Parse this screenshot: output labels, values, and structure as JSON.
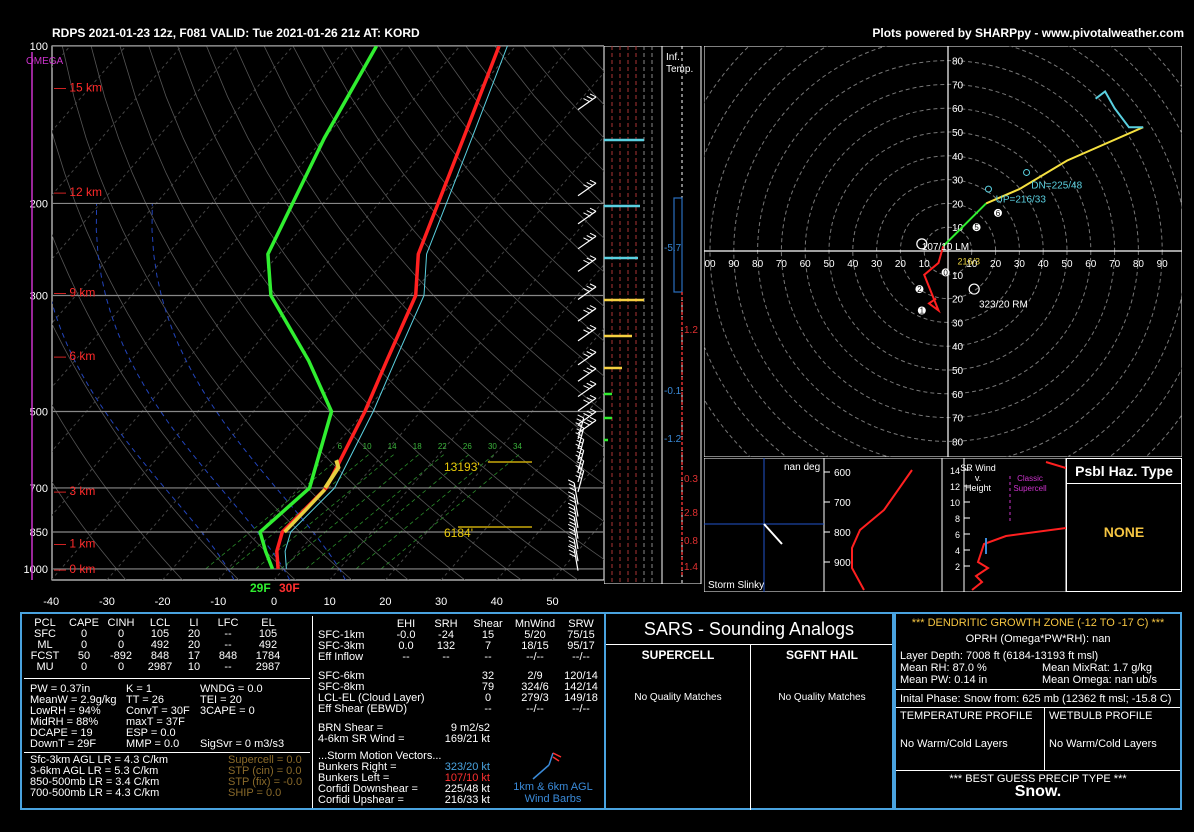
{
  "header": {
    "title_left": "RDPS 2021-01-23 12z, F081  VALID: Tue 2021-01-26 21z  AT: KORD",
    "title_right": "Plots powered by SHARPpy - www.pivotalweather.com"
  },
  "skewt": {
    "omega_label": "OMEGA",
    "pressure_ticks": [
      "100",
      "200",
      "300",
      "500",
      "700",
      "850",
      "1000"
    ],
    "temp_ticks": [
      "-40",
      "-30",
      "-20",
      "-10",
      "0",
      "10",
      "20",
      "30",
      "40",
      "50"
    ],
    "height_labels": [
      "15 km",
      "12 km",
      "9 km",
      "6 km",
      "3 km",
      "1 km",
      "0 km"
    ],
    "mixing_ratio_labels": [
      "6",
      "10",
      "14",
      "18",
      "22",
      "26",
      "30",
      "34"
    ],
    "level_13193": "13193'",
    "level_6184": "6184'",
    "sfc_dewpoint": "29F",
    "sfc_temp": "30F",
    "inf_temp_label": "Inf. Temp.",
    "inf_values": [
      "-5.7",
      "1.2",
      "-0.1",
      "-1.2",
      "0.3",
      "2.8",
      "0.8",
      "1.4"
    ]
  },
  "chart_data": {
    "type": "line",
    "title": "",
    "xlabel": "",
    "ylabel": "",
    "ylim": [
      1000,
      100
    ],
    "xlim": [
      -40,
      50
    ],
    "series": [
      {
        "name": "",
        "color": "#ff2020",
        "x": [
          -1,
          -4,
          -6,
          -5,
          -10,
          -14,
          -19,
          -25,
          -35,
          -43
        ],
        "y": [
          1000,
          925,
          850,
          700,
          500,
          400,
          300,
          250,
          150,
          100
        ]
      },
      {
        "name": "",
        "color": "#30ee30",
        "x": [
          -2,
          -6,
          -10,
          -8,
          -16,
          -28,
          -45,
          -52,
          -60,
          -65
        ],
        "y": [
          1000,
          925,
          850,
          700,
          500,
          400,
          300,
          250,
          150,
          100
        ]
      }
    ]
  },
  "hodograph": {
    "y_ticks": [
      "80",
      "70",
      "60",
      "50",
      "40",
      "30",
      "20",
      "10",
      "",
      "10",
      "20",
      "30",
      "40",
      "50",
      "60",
      "70",
      "80"
    ],
    "x_ticks": [
      "00",
      "90",
      "80",
      "70",
      "60",
      "50",
      "40",
      "30",
      "20",
      "10",
      "",
      "10",
      "20",
      "30",
      "40",
      "50",
      "60",
      "70",
      "80",
      "90"
    ],
    "dn_label": "DN=225/48",
    "up_label": "UP=216/33",
    "lm_label": "107/10 LM",
    "mean_label": "216/3",
    "rm_label": "323/20 RM",
    "markers": [
      "1",
      "2",
      "0",
      "5",
      "6"
    ]
  },
  "slinky": {
    "title": "nan deg",
    "label": "Storm Slinky",
    "p_ticks": [
      "600",
      "700",
      "800",
      "900"
    ]
  },
  "srwind": {
    "title": "SR Wind v. Height",
    "supercell": "Classic Supercell",
    "ticks": [
      "14",
      "12",
      "10",
      "8",
      "6",
      "4",
      "2"
    ]
  },
  "hazard": {
    "title": "Psbl Haz. Type",
    "value": "NONE"
  },
  "parcels": {
    "headers": [
      "PCL",
      "CAPE",
      "CINH",
      "LCL",
      "LI",
      "LFC",
      "EL"
    ],
    "rows": [
      [
        "SFC",
        "0",
        "0",
        "105",
        "20",
        "--",
        "105"
      ],
      [
        "ML",
        "0",
        "0",
        "492",
        "20",
        "--",
        "492"
      ],
      [
        "FCST",
        "50",
        "-892",
        "848",
        "17",
        "848",
        "1784"
      ],
      [
        "MU",
        "0",
        "0",
        "2987",
        "10",
        "--",
        "2987"
      ]
    ]
  },
  "indices": {
    "col1": [
      "PW = 0.37in",
      "MeanW = 2.9g/kg",
      "LowRH = 94%",
      "MidRH = 88%",
      "DCAPE = 19",
      "DownT = 29F"
    ],
    "col2": [
      "K = 1",
      "TT = 26",
      "ConvT = 30F",
      "maxT = 37F",
      "ESP = 0.0",
      "MMP = 0.0"
    ],
    "col3": [
      "WNDG = 0.0",
      "TEI = 20",
      "3CAPE = 0",
      "",
      "",
      "SigSvr = 0 m3/s3"
    ]
  },
  "lapse": [
    "Sfc-3km AGL LR = 4.3 C/km",
    "3-6km AGL LR = 5.3 C/km",
    "850-500mb LR = 3.4 C/km",
    "700-500mb LR = 4.3 C/km"
  ],
  "supercell_params": [
    "Supercell = 0.0",
    "STP (cin) = 0.0",
    "STP (fix) = -0.0",
    "SHIP = 0.0"
  ],
  "kinematics": {
    "headers": [
      "EHI",
      "SRH",
      "Shear",
      "MnWind",
      "SRW"
    ],
    "rows": [
      [
        "SFC-1km",
        "-0.0",
        "-24",
        "15",
        "5/20",
        "75/15"
      ],
      [
        "SFC-3km",
        "0.0",
        "132",
        "7",
        "18/15",
        "95/17"
      ],
      [
        "Eff Inflow",
        "--",
        "--",
        "--",
        "--/--",
        "--/--"
      ],
      [
        "SFC-6km",
        "",
        "",
        "32",
        "2/9",
        "120/14"
      ],
      [
        "SFC-8km",
        "",
        "",
        "79",
        "324/6",
        "142/14"
      ],
      [
        "LCL-EL (Cloud Layer)",
        "",
        "",
        "0",
        "279/3",
        "149/18"
      ],
      [
        "Eff Shear (EBWD)",
        "",
        "",
        "--",
        "--/--",
        "--/--"
      ]
    ],
    "brn_label": "BRN Shear =",
    "brn_value": "9 m2/s2",
    "srw46_label": "4-6km SR Wind =",
    "srw46_value": "169/21 kt",
    "storm_motion_title": "...Storm Motion Vectors...",
    "motions": [
      [
        "Bunkers Right =",
        "323/20 kt"
      ],
      [
        "Bunkers Left =",
        "107/10 kt"
      ],
      [
        "Corfidi Downshear =",
        "225/48 kt"
      ],
      [
        "Corfidi Upshear =",
        "216/33 kt"
      ]
    ],
    "barb_label1": "1km & 6km AGL",
    "barb_label2": "Wind Barbs"
  },
  "sars": {
    "title": "SARS - Sounding Analogs",
    "supercell": "SUPERCELL",
    "hail": "SGFNT HAIL",
    "supercell_msg": "No Quality Matches",
    "hail_msg": "No Quality Matches"
  },
  "dgz": {
    "title": "*** DENDRITIC GROWTH ZONE (-12 TO -17 C) ***",
    "oprh": "OPRH (Omega*PW*RH): nan",
    "layer": "Layer Depth: 7008 ft (6184-13193 ft msl)",
    "mean_rh": "Mean RH: 87.0 %",
    "mean_mixrat": "Mean MixRat: 1.7 g/kg",
    "mean_pw": "Mean PW: 0.14 in",
    "mean_omega": "Mean Omega: nan ub/s",
    "initial_phase": "Inital Phase: Snow from: 625 mb (12362 ft msl; -15.8 C)",
    "temp_profile": "TEMPERATURE PROFILE",
    "wetbulb_profile": "WETBULB PROFILE",
    "temp_msg": "No Warm/Cold Layers",
    "wetbulb_msg": "No Warm/Cold Layers",
    "precip_title": "*** BEST GUESS PRECIP TYPE ***",
    "precip_value": "Snow."
  }
}
